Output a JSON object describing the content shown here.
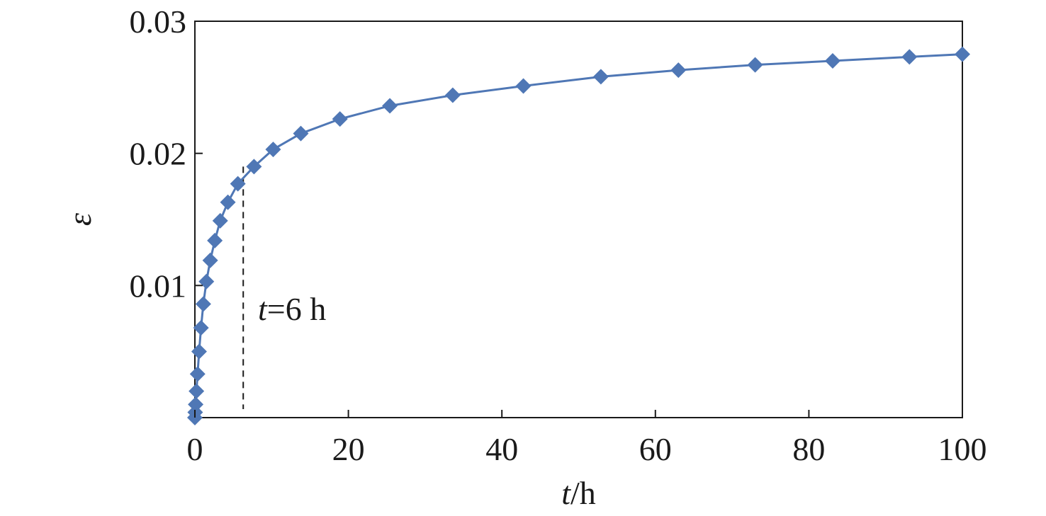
{
  "chart_data": {
    "type": "line",
    "xlabel_var": "t",
    "xlabel_unit": "/h",
    "ylabel": "ε",
    "xlim": [
      0,
      100
    ],
    "ylim": [
      0,
      0.03
    ],
    "x_ticks": [
      0,
      20,
      40,
      60,
      80,
      100
    ],
    "x_tick_labels": [
      "0",
      "20",
      "40",
      "60",
      "80",
      "100"
    ],
    "y_ticks": [
      0.01,
      0.02,
      0.03
    ],
    "y_tick_labels": [
      "0.01",
      "0.02",
      "0.03"
    ],
    "grid": false,
    "legend": "none",
    "series": [
      {
        "color": "#4f77b5",
        "marker": "diamond",
        "line": "solid",
        "x": [
          0.0,
          0.04,
          0.1,
          0.2,
          0.35,
          0.55,
          0.8,
          1.1,
          1.5,
          2.0,
          2.6,
          3.3,
          4.3,
          5.6,
          7.7,
          10.2,
          13.8,
          18.9,
          25.4,
          33.6,
          42.8,
          52.9,
          63.0,
          73.0,
          83.1,
          93.1,
          100.0
        ],
        "y": [
          0.0,
          0.0004,
          0.001,
          0.002,
          0.0033,
          0.005,
          0.0068,
          0.0086,
          0.0103,
          0.0119,
          0.0134,
          0.0149,
          0.0163,
          0.0177,
          0.019,
          0.0203,
          0.0215,
          0.0226,
          0.0236,
          0.0244,
          0.0251,
          0.0258,
          0.0263,
          0.0267,
          0.027,
          0.0273,
          0.0275
        ]
      }
    ],
    "annotation": {
      "var": "t",
      "text": "=6 h",
      "x": 6.3,
      "y_top": 0.019,
      "line": "dashed"
    }
  }
}
